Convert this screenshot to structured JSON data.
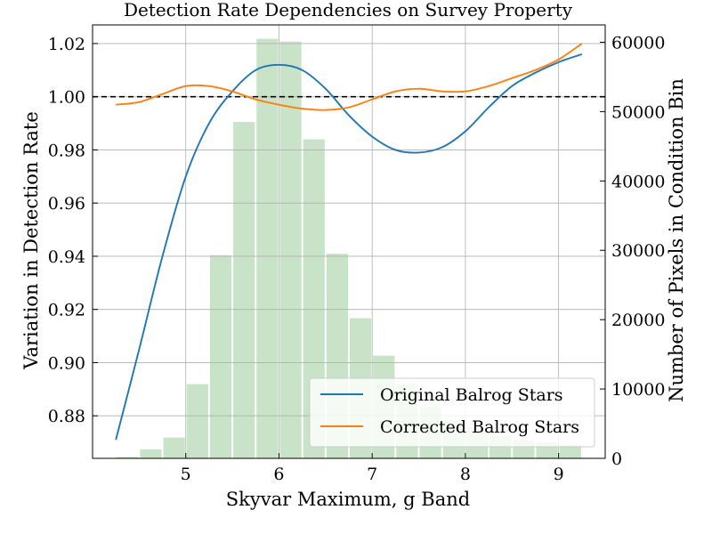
{
  "chart_data": {
    "type": "line",
    "title": "Detection Rate Dependencies on Survey Property",
    "xlabel": "Skyvar Maximum, g Band",
    "ylabel": "Variation in Detection Rate",
    "y2label": "Number of Pixels in Condition Bin",
    "xlim": [
      4.0,
      9.5
    ],
    "ylim": [
      0.864,
      1.027
    ],
    "y2lim": [
      0,
      62500
    ],
    "xticks": [
      5,
      6,
      7,
      8,
      9
    ],
    "yticks": [
      0.88,
      0.9,
      0.92,
      0.94,
      0.96,
      0.98,
      1.0,
      1.02
    ],
    "y2ticks": [
      0,
      10000,
      20000,
      30000,
      40000,
      50000,
      60000
    ],
    "grid": true,
    "reference_line": {
      "y": 1.0,
      "style": "dashed",
      "color": "#000000"
    },
    "legend_position": "lower-right",
    "series": [
      {
        "name": "Original Balrog Stars",
        "color": "#1f77b4",
        "x": [
          4.25,
          4.5,
          4.75,
          5.0,
          5.25,
          5.5,
          5.75,
          6.0,
          6.25,
          6.5,
          6.75,
          7.0,
          7.25,
          7.5,
          7.75,
          8.0,
          8.25,
          8.5,
          8.75,
          9.0,
          9.25
        ],
        "y": [
          0.871,
          0.905,
          0.94,
          0.97,
          0.99,
          1.002,
          1.01,
          1.012,
          1.01,
          1.003,
          0.993,
          0.985,
          0.98,
          0.979,
          0.981,
          0.987,
          0.996,
          1.004,
          1.009,
          1.013,
          1.016
        ]
      },
      {
        "name": "Corrected Balrog Stars",
        "color": "#ff7f0e",
        "x": [
          4.25,
          4.5,
          4.75,
          5.0,
          5.25,
          5.5,
          5.75,
          6.0,
          6.25,
          6.5,
          6.75,
          7.0,
          7.25,
          7.5,
          7.75,
          8.0,
          8.25,
          8.5,
          8.75,
          9.0,
          9.25
        ],
        "y": [
          0.997,
          0.998,
          1.001,
          1.004,
          1.004,
          1.002,
          0.999,
          0.997,
          0.9955,
          0.995,
          0.996,
          0.999,
          1.002,
          1.003,
          1.002,
          1.002,
          1.004,
          1.007,
          1.01,
          1.014,
          1.02
        ]
      }
    ],
    "histogram": {
      "axis": "right",
      "color": "#c8e3c8",
      "bin_width": 0.25,
      "bin_centers": [
        4.375,
        4.625,
        4.875,
        5.125,
        5.375,
        5.625,
        5.875,
        6.125,
        6.375,
        6.625,
        6.875,
        7.125,
        7.375,
        7.625,
        7.875,
        8.125,
        8.375,
        8.625,
        8.875,
        9.125
      ],
      "counts": [
        200,
        1300,
        3000,
        10700,
        29300,
        48500,
        60500,
        60100,
        46000,
        29500,
        20200,
        14800,
        10800,
        7500,
        5300,
        4000,
        3200,
        2600,
        2300,
        2000
      ]
    }
  }
}
